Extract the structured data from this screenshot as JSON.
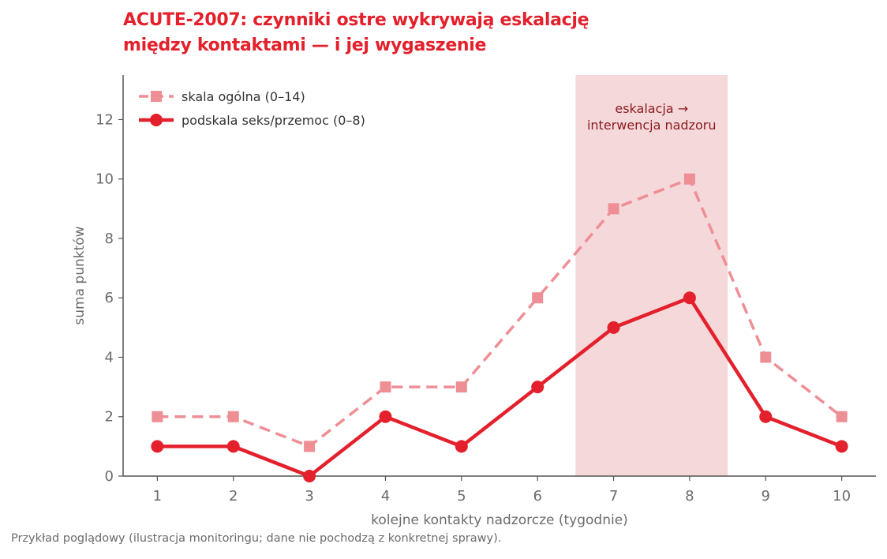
{
  "title_line1": "ACUTE-2007: czynniki ostre wykrywają eskalację",
  "title_line2": "między kontaktami — i jej wygaszenie",
  "footnote": "Przykład poglądowy (ilustracja monitoringu; dane nie pochodzą z konkretnej sprawy).",
  "colors": {
    "title": "#e3202b",
    "series_general": "#ee8e95",
    "series_sub": "#e3202b",
    "band": "#f5d8da",
    "annotation": "#8b1a1f",
    "axis": "#555555"
  },
  "chart_data": {
    "type": "line",
    "x": [
      1,
      2,
      3,
      4,
      5,
      6,
      7,
      8,
      9,
      10
    ],
    "xlabel": "kolejne kontakty nadzorcze (tygodnie)",
    "ylabel": "suma punktów",
    "xlim": [
      0.55,
      10.45
    ],
    "ylim": [
      0,
      13.5
    ],
    "yticks": [
      0,
      2,
      4,
      6,
      8,
      10,
      12
    ],
    "series": [
      {
        "name": "skala ogólna (0–14)",
        "values": [
          2,
          2,
          1,
          3,
          3,
          6,
          9,
          10,
          4,
          2
        ],
        "style": "dashed",
        "marker": "square"
      },
      {
        "name": "podskala seks/przemoc (0–8)",
        "values": [
          1,
          1,
          0,
          2,
          1,
          3,
          5,
          6,
          2,
          1
        ],
        "style": "solid",
        "marker": "circle"
      }
    ],
    "highlight": {
      "x_from": 6.5,
      "x_to": 8.5,
      "label_line1": "eskalacja →",
      "label_line2": "interwencja nadzoru"
    },
    "legend_position": "top-left",
    "grid": false
  }
}
